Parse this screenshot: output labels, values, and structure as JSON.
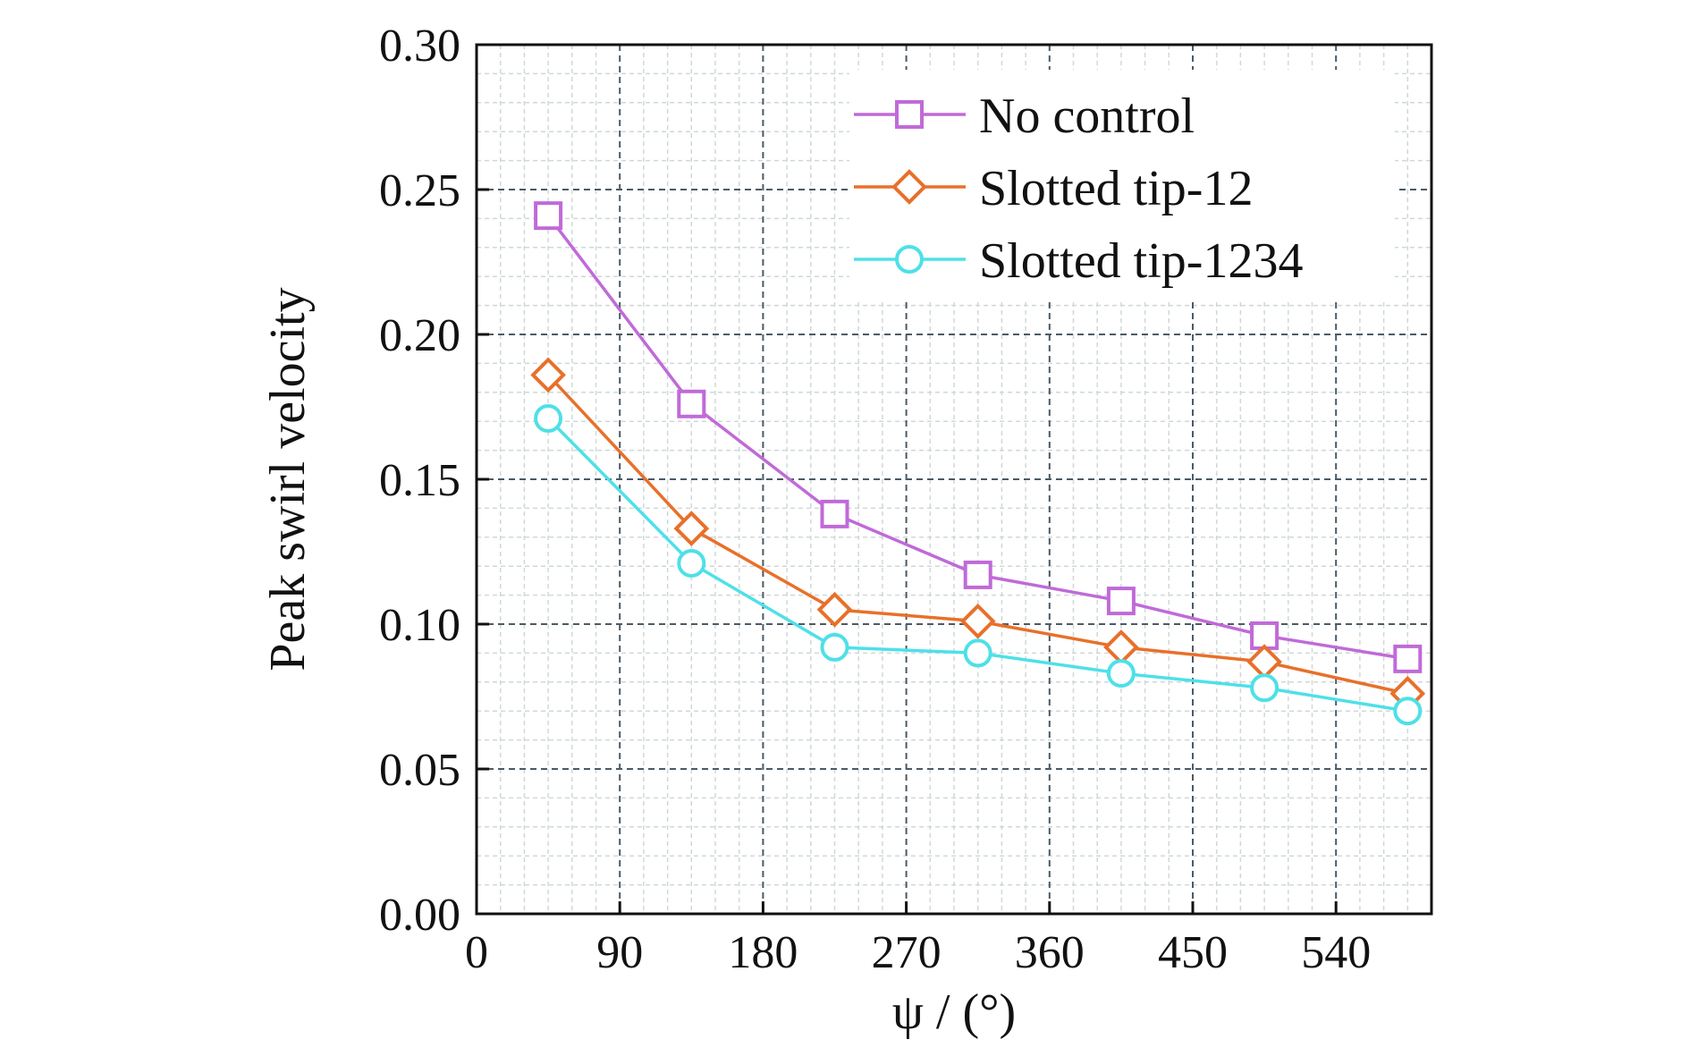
{
  "chart_data": {
    "type": "line",
    "title": "",
    "xlabel": "ψ / (°)",
    "ylabel": "Peak swirl velocity",
    "xlim": [
      0,
      600
    ],
    "ylim": [
      0,
      0.3
    ],
    "x_ticks": [
      "0",
      "90",
      "180",
      "270",
      "360",
      "450",
      "540"
    ],
    "y_ticks": [
      "0.00",
      "0.05",
      "0.10",
      "0.15",
      "0.20",
      "0.25",
      "0.30"
    ],
    "grid": true,
    "legend_position": "top-right",
    "x": [
      45,
      135,
      225,
      315,
      405,
      495,
      585
    ],
    "series": [
      {
        "name": "No control",
        "marker": "square",
        "color": "#c06ad8",
        "values": [
          0.241,
          0.176,
          0.138,
          0.117,
          0.108,
          0.096,
          0.088
        ]
      },
      {
        "name": "Slotted tip-12",
        "marker": "diamond",
        "color": "#e8702a",
        "values": [
          0.186,
          0.133,
          0.105,
          0.101,
          0.092,
          0.087,
          0.076
        ]
      },
      {
        "name": "Slotted tip-1234",
        "marker": "circle",
        "color": "#4ee0e8",
        "values": [
          0.171,
          0.121,
          0.092,
          0.09,
          0.083,
          0.078,
          0.07
        ]
      }
    ]
  }
}
